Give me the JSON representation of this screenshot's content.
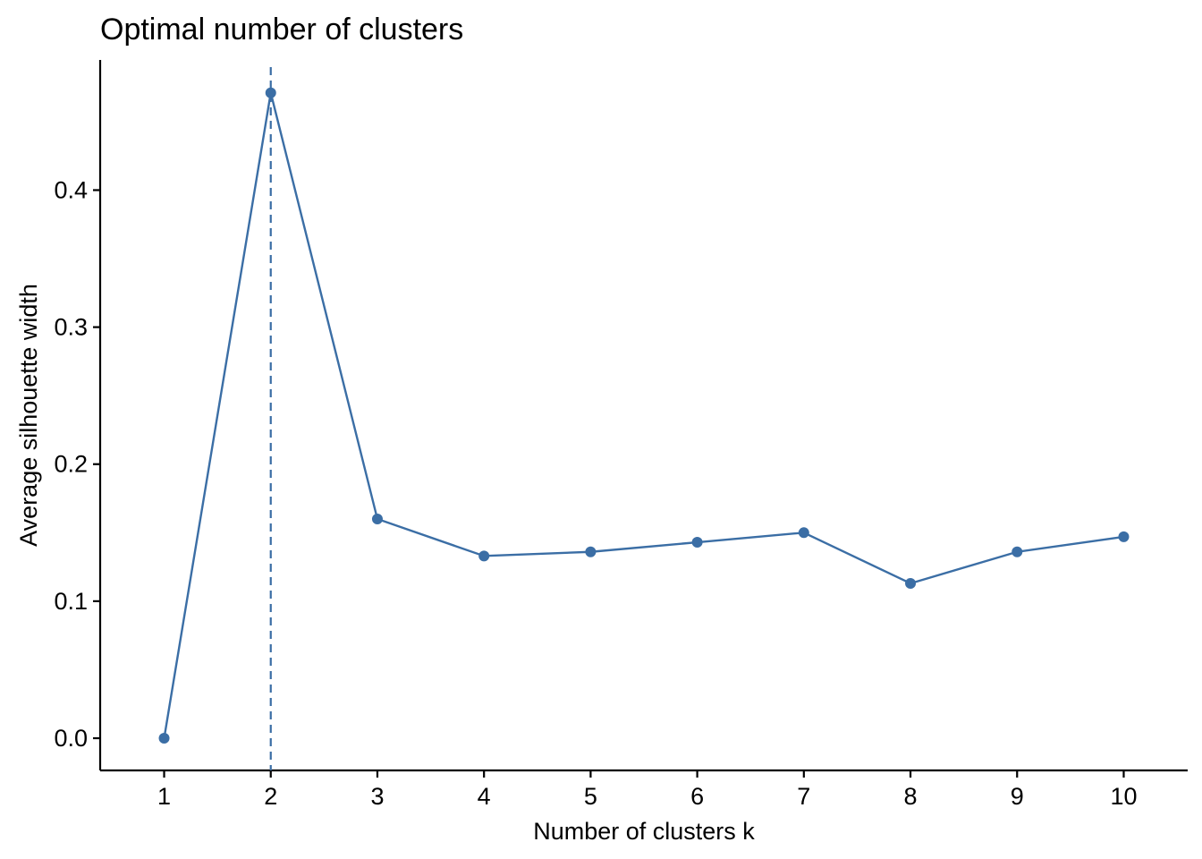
{
  "chart_data": {
    "type": "line",
    "title": "Optimal number of clusters",
    "xlabel": "Number of clusters k",
    "ylabel": "Average silhouette width",
    "x": [
      1,
      2,
      3,
      4,
      5,
      6,
      7,
      8,
      9,
      10
    ],
    "series": [
      {
        "values": [
          0.0,
          0.471,
          0.16,
          0.133,
          0.136,
          0.143,
          0.15,
          0.113,
          0.136,
          0.147
        ]
      }
    ],
    "x_ticks": [
      "1",
      "2",
      "3",
      "4",
      "5",
      "6",
      "7",
      "8",
      "9",
      "10"
    ],
    "y_ticks": [
      "0.0",
      "0.1",
      "0.2",
      "0.3",
      "0.4"
    ],
    "y_tick_values": [
      0.0,
      0.1,
      0.2,
      0.3,
      0.4
    ],
    "xlim": [
      0.4,
      10.6
    ],
    "ylim": [
      -0.0235,
      0.495
    ],
    "optimal_k": 2,
    "grid": false,
    "colors": {
      "line": "#3B6EA5",
      "point": "#3B6EA5",
      "reference_line": "#3B6EA5",
      "axis": "#000000"
    }
  }
}
